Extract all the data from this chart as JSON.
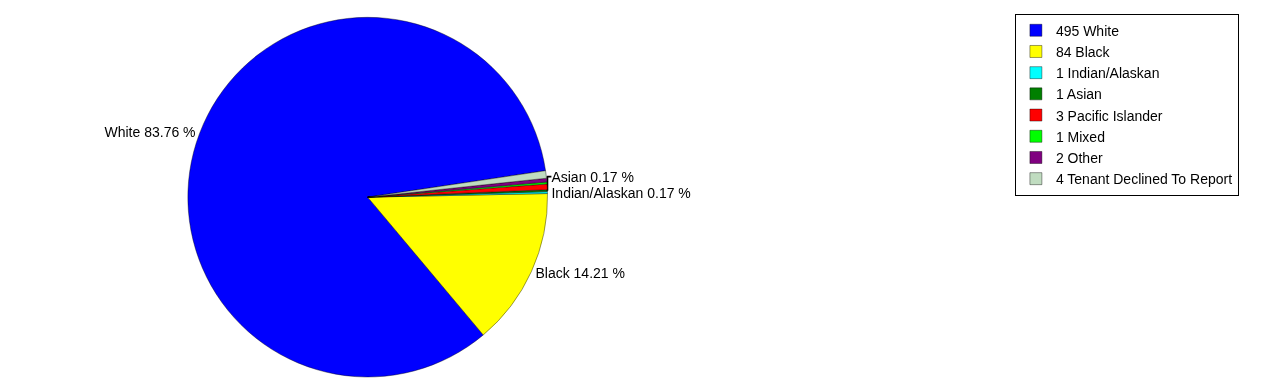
{
  "chart_data": {
    "type": "pie",
    "categories": [
      "495 White",
      "84 Black",
      "1 Indian/Alaskan",
      "1 Asian",
      "3 Pacific Islander",
      "1 Mixed",
      "2 Other",
      "4 Tenant Declined To Report"
    ],
    "values": [
      83.76,
      14.21,
      0.17,
      0.17,
      0.51,
      0.17,
      0.34,
      0.67
    ],
    "colors": [
      "#0000ff",
      "#ffff00",
      "#00ffff",
      "#008000",
      "#ff0000",
      "#00ff00",
      "#800080",
      "#c0dcc0"
    ],
    "value_labels": [
      "White 83.76 %",
      "Black 14.21 %",
      "Indian/Alaskan 0.17 %",
      "Asian 0.17 %",
      null,
      null,
      null,
      null
    ],
    "legend": "top right"
  }
}
